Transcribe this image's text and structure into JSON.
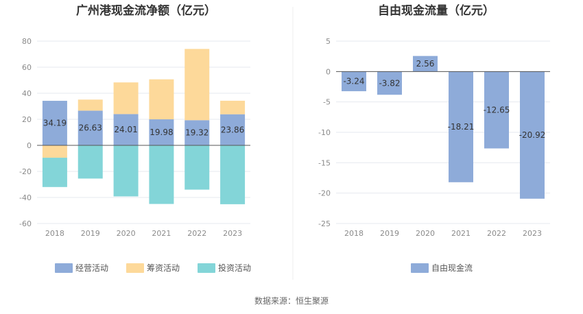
{
  "chart_data": [
    {
      "type": "bar",
      "stacked": true,
      "title": "广州港现金流净额（亿元）",
      "categories": [
        "2018",
        "2019",
        "2020",
        "2021",
        "2022",
        "2023"
      ],
      "ylim": [
        -60,
        80
      ],
      "yticks": [
        80,
        60,
        40,
        20,
        0,
        -20,
        -40,
        -60
      ],
      "grid": true,
      "legend_position": "bottom",
      "series": [
        {
          "name": "经营活动",
          "color": "#8eabd9",
          "values": [
            34.19,
            26.63,
            24.01,
            19.98,
            19.32,
            23.86
          ],
          "labels": [
            "34.19",
            "26.63",
            "24.01",
            "19.98",
            "19.32",
            "23.86"
          ]
        },
        {
          "name": "筹资活动",
          "color": "#fdd99a",
          "values": [
            -9.5,
            8.5,
            24.3,
            30.7,
            54.7,
            10.4
          ]
        },
        {
          "name": "投资活动",
          "color": "#83d5d8",
          "values": [
            -22.5,
            -25.5,
            -39.2,
            -45.0,
            -34.0,
            -45.2
          ]
        }
      ]
    },
    {
      "type": "bar",
      "title": "自由现金流量（亿元）",
      "categories": [
        "2018",
        "2019",
        "2020",
        "2021",
        "2022",
        "2023"
      ],
      "ylim": [
        -25,
        5
      ],
      "yticks": [
        5,
        0,
        -5,
        -10,
        -15,
        -20,
        -25
      ],
      "grid": true,
      "legend_position": "bottom",
      "series": [
        {
          "name": "自由现金流",
          "color": "#8eabd9",
          "values": [
            -3.24,
            -3.82,
            2.56,
            -18.21,
            -12.65,
            -20.92
          ],
          "labels": [
            "-3.24",
            "-3.82",
            "2.56",
            "-18.21",
            "-12.65",
            "-20.92"
          ]
        }
      ]
    }
  ],
  "footer": {
    "source": "数据来源：恒生聚源"
  }
}
